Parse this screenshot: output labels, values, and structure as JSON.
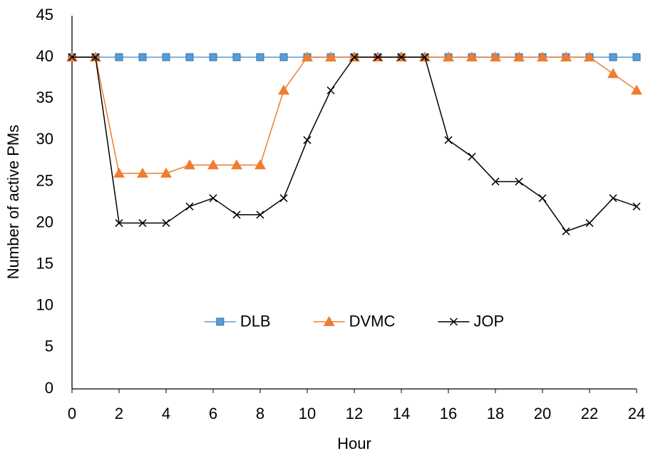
{
  "chart_data": {
    "type": "line",
    "x": [
      0,
      1,
      2,
      3,
      4,
      5,
      6,
      7,
      8,
      9,
      10,
      11,
      12,
      13,
      14,
      15,
      16,
      17,
      18,
      19,
      20,
      21,
      22,
      23,
      24
    ],
    "series": [
      {
        "name": "DLB",
        "color": "#5b9bd5",
        "marker": "square",
        "values": [
          40,
          40,
          40,
          40,
          40,
          40,
          40,
          40,
          40,
          40,
          40,
          40,
          40,
          40,
          40,
          40,
          40,
          40,
          40,
          40,
          40,
          40,
          40,
          40,
          40
        ]
      },
      {
        "name": "DVMC",
        "color": "#ed7d31",
        "marker": "triangle",
        "values": [
          40,
          40,
          26,
          26,
          26,
          27,
          27,
          27,
          27,
          36,
          40,
          40,
          40,
          40,
          40,
          40,
          40,
          40,
          40,
          40,
          40,
          40,
          40,
          38,
          36
        ]
      },
      {
        "name": "JOP",
        "color": "#000000",
        "marker": "x",
        "values": [
          40,
          40,
          20,
          20,
          20,
          22,
          23,
          21,
          21,
          23,
          30,
          36,
          40,
          40,
          40,
          40,
          30,
          28,
          25,
          25,
          23,
          19,
          20,
          23,
          22
        ]
      }
    ],
    "xlim": [
      0,
      24
    ],
    "xticks": [
      0,
      2,
      4,
      6,
      8,
      10,
      12,
      14,
      16,
      18,
      20,
      22,
      24
    ],
    "ylim": [
      0,
      45
    ],
    "yticks": [
      0,
      5,
      10,
      15,
      20,
      25,
      30,
      35,
      40,
      45
    ],
    "xlabel": "Hour",
    "ylabel": "Number of active PMs",
    "grid": false,
    "legend": "lower center"
  }
}
